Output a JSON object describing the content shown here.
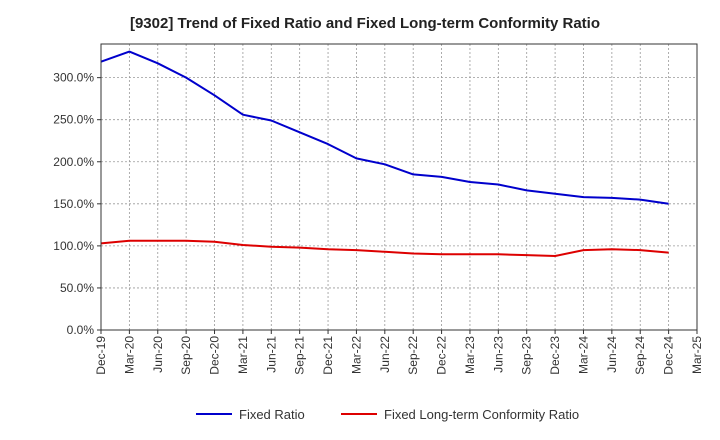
{
  "chart_data": {
    "type": "line",
    "title": "[9302]  Trend of Fixed Ratio and Fixed Long-term Conformity Ratio",
    "xlabel": "",
    "ylabel": "",
    "x": [
      "Dec-19",
      "Mar-20",
      "Jun-20",
      "Sep-20",
      "Dec-20",
      "Mar-21",
      "Jun-21",
      "Sep-21",
      "Dec-21",
      "Mar-22",
      "Jun-22",
      "Sep-22",
      "Dec-22",
      "Mar-23",
      "Jun-23",
      "Sep-23",
      "Dec-23",
      "Mar-24",
      "Jun-24",
      "Sep-24",
      "Dec-24",
      "Mar-25"
    ],
    "yticks": [
      "0.0%",
      "50.0%",
      "100.0%",
      "150.0%",
      "200.0%",
      "250.0%",
      "300.0%"
    ],
    "ylim": [
      0,
      340
    ],
    "grid": true,
    "legend_position": "bottom",
    "series": [
      {
        "name": "Fixed Ratio",
        "color": "#0000cc",
        "values": [
          319,
          331,
          317,
          300,
          279,
          256,
          249,
          235,
          221,
          204,
          197,
          185,
          182,
          176,
          173,
          166,
          162,
          158,
          157,
          155,
          150,
          null
        ]
      },
      {
        "name": "Fixed Long-term Conformity Ratio",
        "color": "#dd0000",
        "values": [
          103,
          106,
          106,
          106,
          105,
          101,
          99,
          98,
          96,
          95,
          93,
          91,
          90,
          90,
          90,
          89,
          88,
          95,
          96,
          95,
          92,
          null
        ]
      }
    ]
  }
}
